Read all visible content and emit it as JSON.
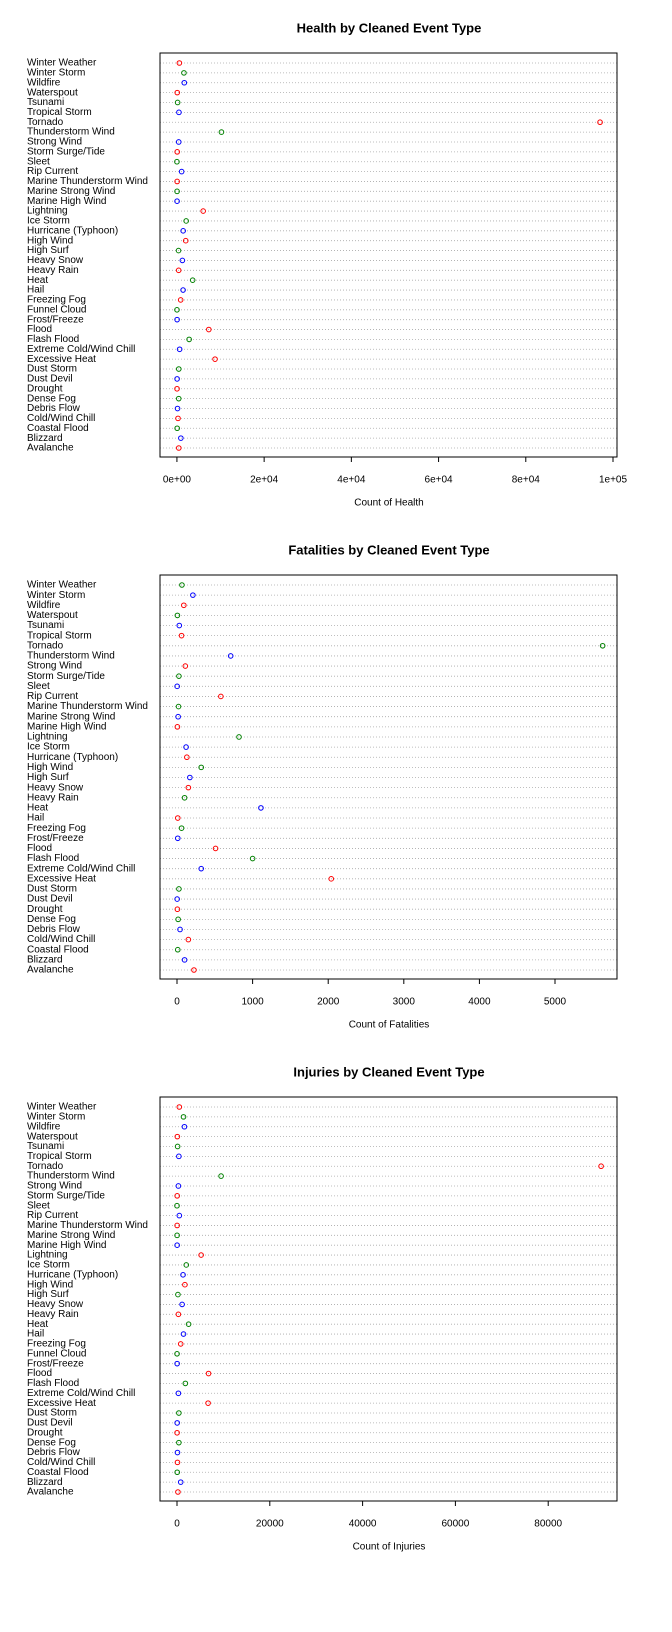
{
  "chart_data": [
    {
      "type": "dot",
      "title": "Health by Cleaned Event Type",
      "xlabel": "Count of Health",
      "colors": [
        "red",
        "blue",
        "green"
      ],
      "grid": true,
      "categories": [
        "Avalanche",
        "Blizzard",
        "Coastal Flood",
        "Cold/Wind Chill",
        "Debris Flow",
        "Dense Fog",
        "Drought",
        "Dust Devil",
        "Dust Storm",
        "Excessive Heat",
        "Extreme Cold/Wind Chill",
        "Flash Flood",
        "Flood",
        "Frost/Freeze",
        "Funnel Cloud",
        "Freezing Fog",
        "Hail",
        "Heat",
        "Heavy Rain",
        "Heavy Snow",
        "High Surf",
        "High Wind",
        "Hurricane (Typhoon)",
        "Ice Storm",
        "Lightning",
        "Marine High Wind",
        "Marine Strong Wind",
        "Marine Thunderstorm Wind",
        "Rip Current",
        "Sleet",
        "Storm Surge/Tide",
        "Strong Wind",
        "Thunderstorm Wind",
        "Tornado",
        "Tropical Storm",
        "Tsunami",
        "Waterspout",
        "Wildfire",
        "Winter Storm",
        "Winter Weather"
      ],
      "values": [
        424,
        900,
        60,
        250,
        140,
        415,
        25,
        42,
        425,
        8740,
        620,
        2800,
        7310,
        40,
        10,
        860,
        1410,
        3610,
        400,
        1250,
        370,
        2020,
        1430,
        2120,
        6020,
        35,
        35,
        50,
        1080,
        2,
        65,
        410,
        10210,
        97030,
        460,
        160,
        75,
        1690,
        1610,
        565
      ],
      "xlim": [
        -3881,
        100917
      ],
      "xticks": [
        {
          "value": 0,
          "label": "0e+00"
        },
        {
          "value": 20000,
          "label": "2e+04"
        },
        {
          "value": 40000,
          "label": "4e+04"
        },
        {
          "value": 60000,
          "label": "6e+04"
        },
        {
          "value": 80000,
          "label": "8e+04"
        },
        {
          "value": 100000,
          "label": "1e+05"
        }
      ]
    },
    {
      "type": "dot",
      "title": "Fatalities by Cleaned Event Type",
      "xlabel": "Count of Fatalities",
      "colors": [
        "red",
        "blue",
        "green"
      ],
      "grid": true,
      "categories": [
        "Avalanche",
        "Blizzard",
        "Coastal Flood",
        "Cold/Wind Chill",
        "Debris Flow",
        "Dense Fog",
        "Drought",
        "Dust Devil",
        "Dust Storm",
        "Excessive Heat",
        "Extreme Cold/Wind Chill",
        "Flash Flood",
        "Flood",
        "Frost/Freeze",
        "Freezing Fog",
        "Hail",
        "Heat",
        "Heavy Rain",
        "Heavy Snow",
        "High Surf",
        "High Wind",
        "Hurricane (Typhoon)",
        "Ice Storm",
        "Lightning",
        "Marine High Wind",
        "Marine Strong Wind",
        "Marine Thunderstorm Wind",
        "Rip Current",
        "Sleet",
        "Storm Surge/Tide",
        "Strong Wind",
        "Thunderstorm Wind",
        "Tornado",
        "Tropical Storm",
        "Tsunami",
        "Waterspout",
        "Wildfire",
        "Winter Storm",
        "Winter Weather"
      ],
      "values": [
        224,
        100,
        10,
        150,
        40,
        15,
        5,
        2,
        25,
        2040,
        320,
        1000,
        510,
        10,
        60,
        10,
        1110,
        100,
        150,
        170,
        320,
        130,
        120,
        820,
        5,
        15,
        20,
        580,
        2,
        25,
        110,
        710,
        5630,
        60,
        30,
        5,
        90,
        210,
        65
      ],
      "xlim": [
        -225,
        5820
      ],
      "xticks": [
        0,
        1000,
        2000,
        3000,
        4000,
        5000
      ]
    },
    {
      "type": "dot",
      "title": "Injuries by Cleaned Event Type",
      "xlabel": "Count of Injuries",
      "colors": [
        "red",
        "blue",
        "green"
      ],
      "grid": true,
      "categories": [
        "Avalanche",
        "Blizzard",
        "Coastal Flood",
        "Cold/Wind Chill",
        "Debris Flow",
        "Dense Fog",
        "Drought",
        "Dust Devil",
        "Dust Storm",
        "Excessive Heat",
        "Extreme Cold/Wind Chill",
        "Flash Flood",
        "Flood",
        "Frost/Freeze",
        "Funnel Cloud",
        "Freezing Fog",
        "Hail",
        "Heat",
        "Heavy Rain",
        "Heavy Snow",
        "High Surf",
        "High Wind",
        "Hurricane (Typhoon)",
        "Ice Storm",
        "Lightning",
        "Marine High Wind",
        "Marine Strong Wind",
        "Marine Thunderstorm Wind",
        "Rip Current",
        "Sleet",
        "Storm Surge/Tide",
        "Strong Wind",
        "Thunderstorm Wind",
        "Tornado",
        "Tropical Storm",
        "Tsunami",
        "Waterspout",
        "Wildfire",
        "Winter Storm",
        "Winter Weather"
      ],
      "values": [
        200,
        800,
        50,
        100,
        100,
        400,
        20,
        40,
        400,
        6700,
        300,
        1800,
        6800,
        30,
        10,
        800,
        1400,
        2500,
        300,
        1100,
        200,
        1700,
        1300,
        2000,
        5200,
        30,
        20,
        30,
        500,
        0,
        40,
        300,
        9500,
        91400,
        400,
        130,
        70,
        1600,
        1400,
        500
      ],
      "xlim": [
        -3664,
        94827
      ],
      "xticks": [
        0,
        20000,
        40000,
        60000,
        80000
      ]
    }
  ]
}
